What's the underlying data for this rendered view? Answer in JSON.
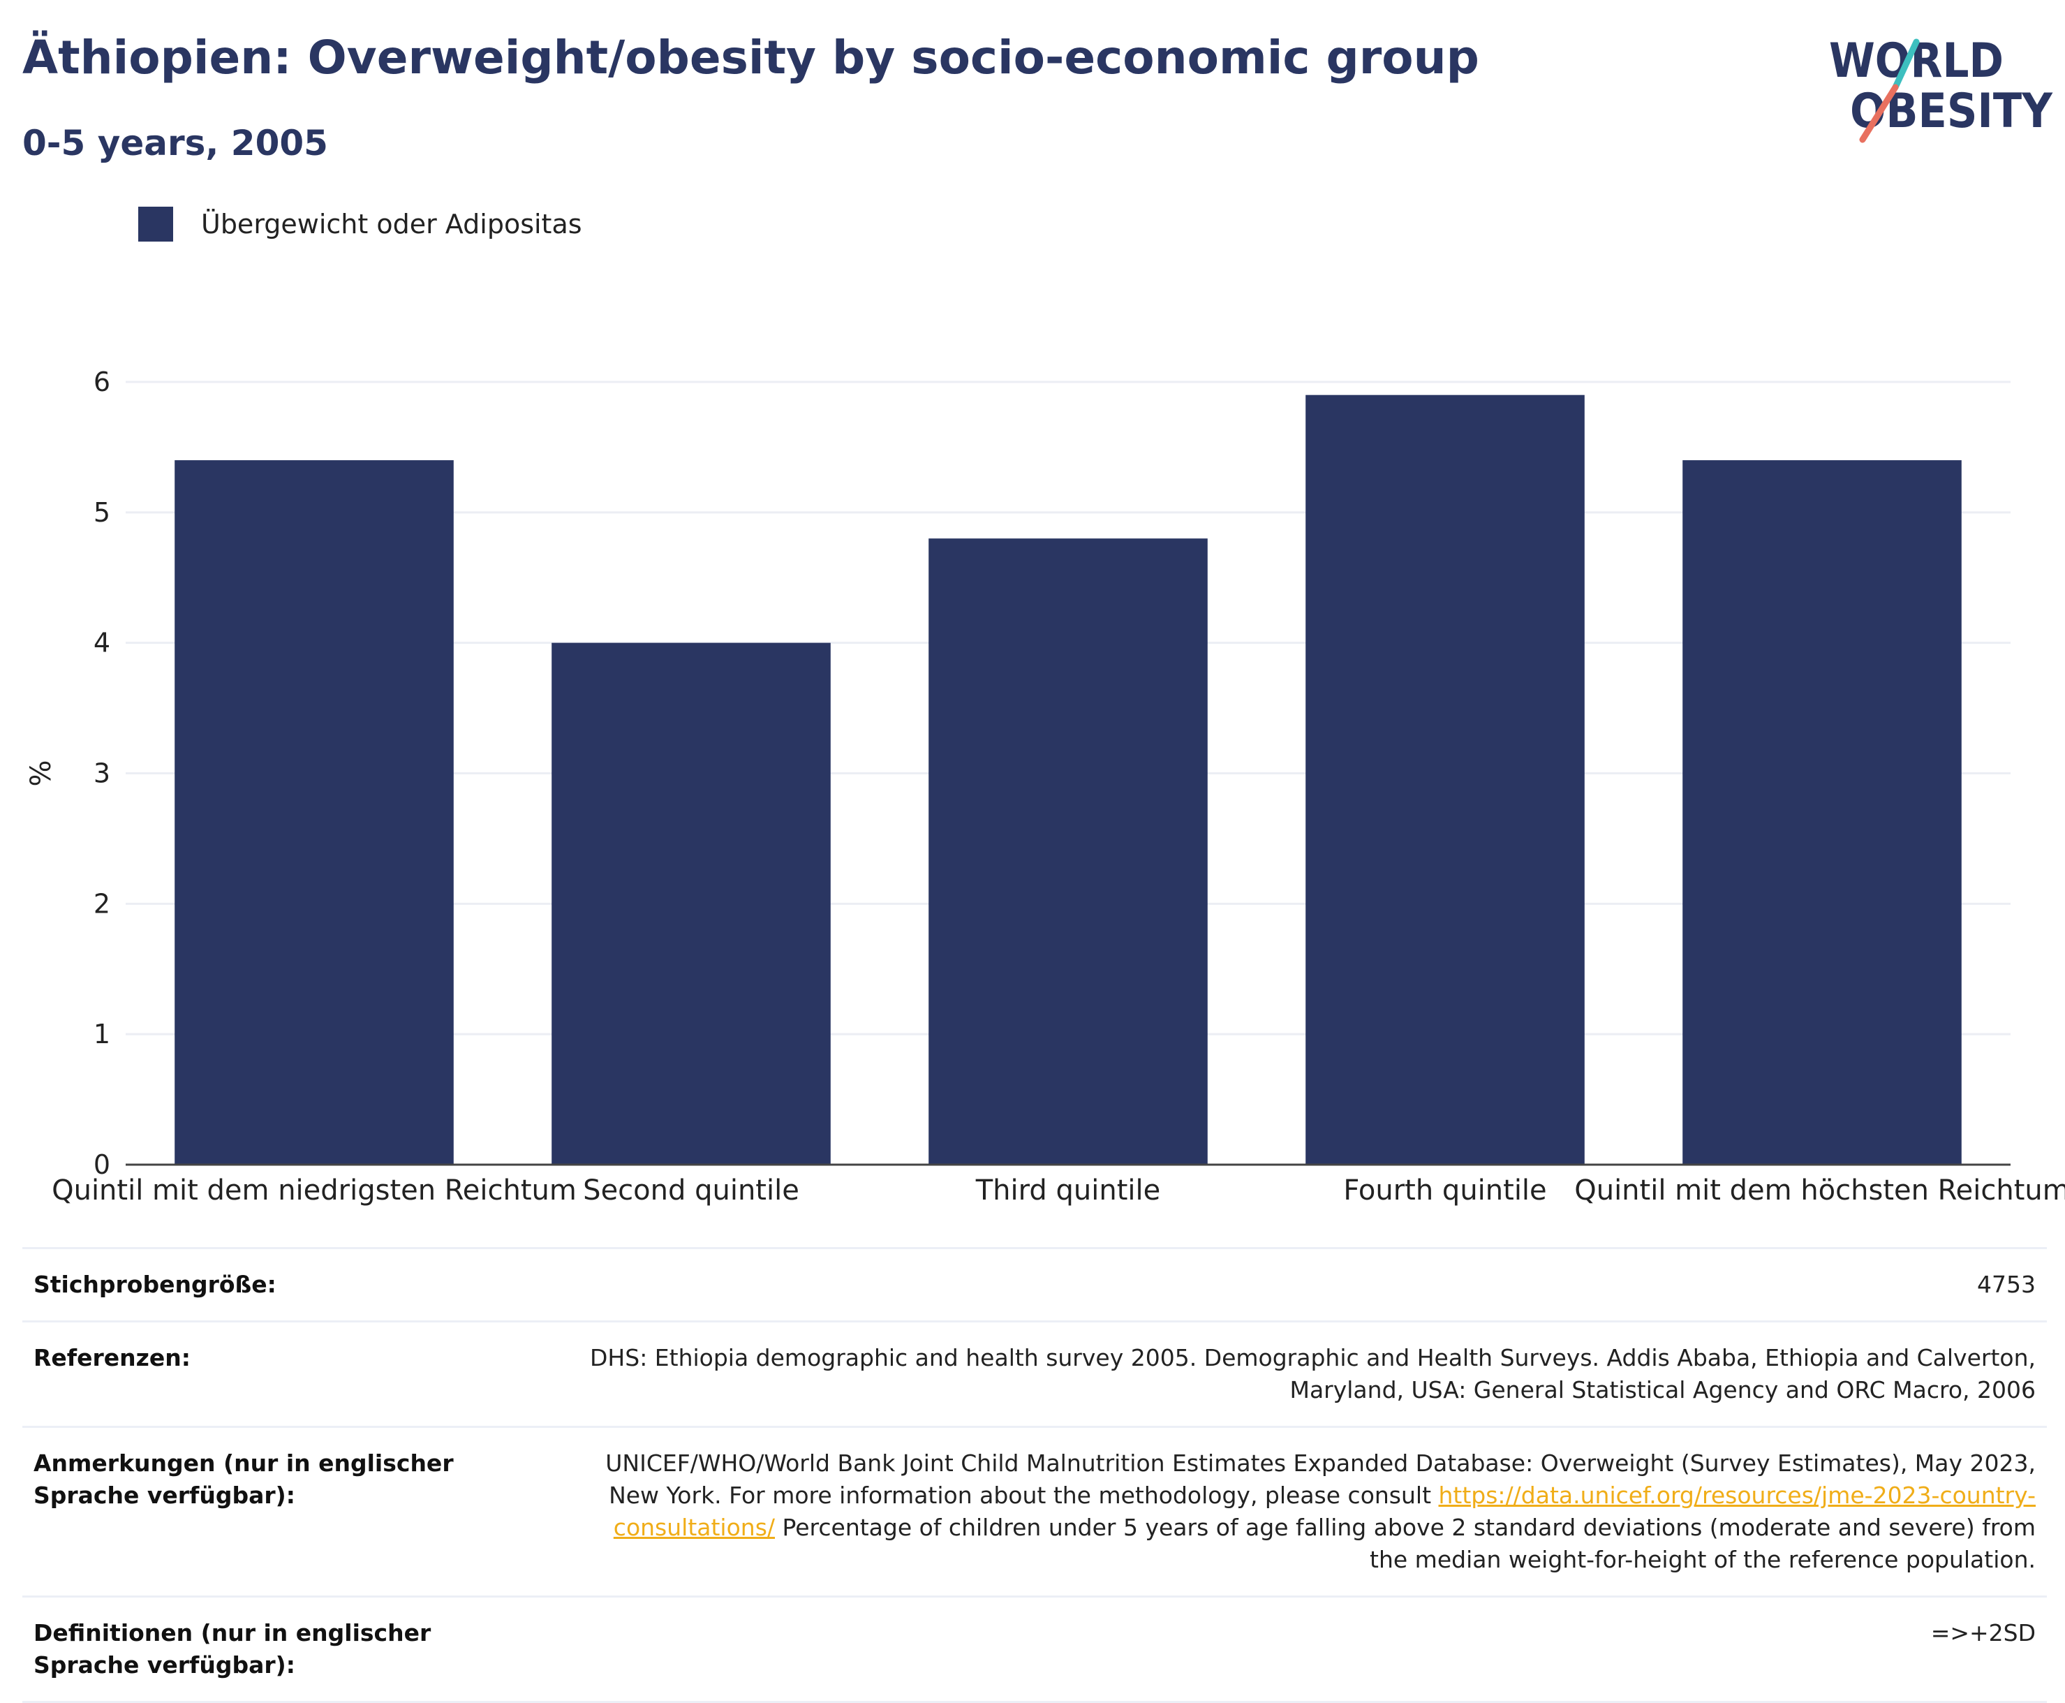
{
  "header": {
    "title": "Äthiopien: Overweight/obesity by socio-economic group",
    "subtitle": "0-5 years, 2005",
    "logo_line1": "WORLD",
    "logo_line2": "OBESITY"
  },
  "colors": {
    "bar": "#2a3662",
    "title": "#2a3662",
    "link": "#f0ad18",
    "logo_teal": "#3dbfbf",
    "logo_coral": "#e8705f"
  },
  "chart_data": {
    "type": "bar",
    "categories": [
      "Quintil mit dem niedrigsten Reichtum",
      "Second quintile",
      "Third quintile",
      "Fourth quintile",
      "Quintil mit dem höchsten Reichtum"
    ],
    "series": [
      {
        "name": "Übergewicht oder Adipositas",
        "values": [
          5.4,
          4.0,
          4.8,
          5.9,
          5.4
        ]
      }
    ],
    "ylabel": "%",
    "ylim": [
      0,
      6
    ],
    "yticks": [
      0,
      1,
      2,
      3,
      4,
      5,
      6
    ],
    "grid": true,
    "legend": "top-left"
  },
  "info_table": [
    {
      "label": "Stichprobengröße:",
      "value": "4753"
    },
    {
      "label": "Referenzen:",
      "value": "DHS: Ethiopia demographic and health survey 2005. Demographic and Health Surveys. Addis Ababa, Ethiopia and Calverton, Maryland, USA: General Statistical Agency and ORC Macro, 2006"
    },
    {
      "label": "Anmerkungen (nur in englischer Sprache verfügbar):",
      "value_before": "UNICEF/WHO/World Bank Joint Child Malnutrition Estimates Expanded Database: Overweight (Survey Estimates), May 2023, New York. For more information about the methodology, please consult ",
      "link": "https://data.unicef.org/resources/jme-2023-country-consultations/",
      "value_after": " Percentage of children under 5 years of age falling above 2 standard deviations (moderate and severe) from the median weight-for-height of the reference population."
    },
    {
      "label": "Definitionen (nur in englischer Sprache verfügbar):",
      "value": "=>+2SD"
    }
  ]
}
